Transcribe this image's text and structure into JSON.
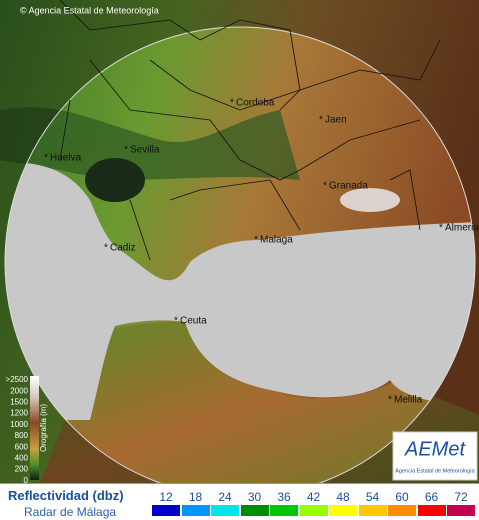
{
  "header": {
    "credit": "© Agencia Estatal de Meteorología"
  },
  "cities": [
    {
      "label": "Cordoba"
    },
    {
      "label": "Jaen"
    },
    {
      "label": "Sevilla"
    },
    {
      "label": "Huelva"
    },
    {
      "label": "Granada"
    },
    {
      "label": "Cadiz"
    },
    {
      "label": "Malaga"
    },
    {
      "label": "Almeria"
    },
    {
      "label": "Ceuta"
    },
    {
      "label": "Melilla"
    }
  ],
  "orography": {
    "title": "Orografía (m)",
    "ticks": [
      ">2500",
      2000,
      1500,
      1200,
      1000,
      800,
      600,
      400,
      200,
      0
    ]
  },
  "logo": {
    "mark": "AEMet",
    "name": "Agencia Estatal de Meteorología"
  },
  "legend": {
    "title": "Reflectividad (dbz)",
    "subtitle": "Radar de Málaga",
    "levels": [
      {
        "value": 12,
        "color": "#0000c8"
      },
      {
        "value": 18,
        "color": "#0096ff"
      },
      {
        "value": 24,
        "color": "#00e6e6"
      },
      {
        "value": 30,
        "color": "#008c00"
      },
      {
        "value": 36,
        "color": "#00c800"
      },
      {
        "value": 42,
        "color": "#96ff00"
      },
      {
        "value": 48,
        "color": "#ffff00"
      },
      {
        "value": 54,
        "color": "#ffc800"
      },
      {
        "value": 60,
        "color": "#ff8c00"
      },
      {
        "value": 66,
        "color": "#ff0000"
      },
      {
        "value": 72,
        "color": "#c80050"
      }
    ]
  }
}
